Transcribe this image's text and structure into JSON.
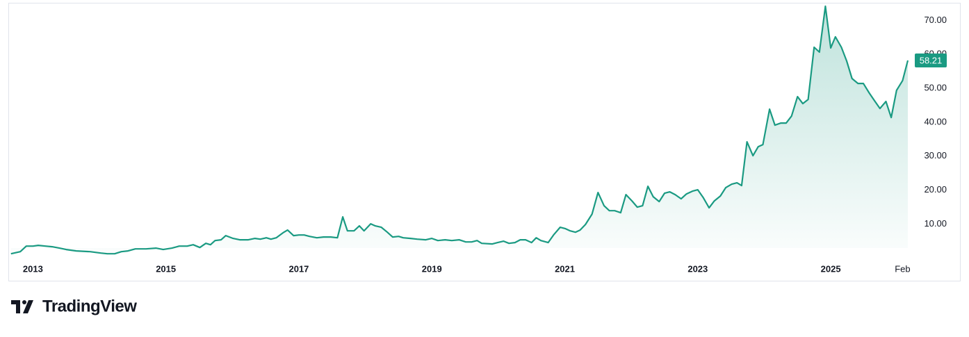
{
  "chart_data": {
    "type": "area",
    "series": [
      {
        "color": "#1a9a82",
        "x": [
          2012.67,
          2012.81,
          2012.9,
          2013.0,
          2013.08,
          2013.19,
          2013.29,
          2013.4,
          2013.5,
          2013.65,
          2013.86,
          2014.02,
          2014.12,
          2014.23,
          2014.33,
          2014.43,
          2014.54,
          2014.7,
          2014.85,
          2014.96,
          2015.09,
          2015.2,
          2015.32,
          2015.41,
          2015.51,
          2015.6,
          2015.67,
          2015.74,
          2015.83,
          2015.9,
          2016.01,
          2016.11,
          2016.24,
          2016.34,
          2016.42,
          2016.51,
          2016.58,
          2016.66,
          2016.76,
          2016.83,
          2016.92,
          2017.0,
          2017.08,
          2017.16,
          2017.27,
          2017.37,
          2017.48,
          2017.58,
          2017.66,
          2017.73,
          2017.83,
          2017.91,
          2017.98,
          2018.08,
          2018.15,
          2018.24,
          2018.33,
          2018.41,
          2018.5,
          2018.57,
          2018.68,
          2018.78,
          2018.91,
          2019.0,
          2019.09,
          2019.2,
          2019.3,
          2019.41,
          2019.51,
          2019.6,
          2019.68,
          2019.75,
          2019.91,
          2019.99,
          2020.08,
          2020.16,
          2020.25,
          2020.33,
          2020.41,
          2020.5,
          2020.57,
          2020.64,
          2020.75,
          2020.83,
          2020.93,
          2021.01,
          2021.08,
          2021.16,
          2021.23,
          2021.31,
          2021.41,
          2021.5,
          2021.59,
          2021.67,
          2021.75,
          2021.84,
          2021.92,
          2022.01,
          2022.09,
          2022.17,
          2022.25,
          2022.33,
          2022.42,
          2022.5,
          2022.58,
          2022.66,
          2022.75,
          2022.83,
          2022.92,
          2023.0,
          2023.08,
          2023.17,
          2023.25,
          2023.34,
          2023.42,
          2023.51,
          2023.59,
          2023.66,
          2023.74,
          2023.83,
          2023.91,
          2023.98,
          2024.08,
          2024.16,
          2024.25,
          2024.33,
          2024.41,
          2024.5,
          2024.58,
          2024.66,
          2024.75,
          2024.83,
          2024.92,
          2025.0,
          2025.07,
          2025.16,
          2025.24,
          2025.32,
          2025.41,
          2025.49,
          2025.58,
          2025.66,
          2025.74,
          2025.83,
          2025.91,
          2025.99,
          2026.08,
          2026.16
        ],
        "values": [
          1.23,
          1.84,
          3.48,
          3.48,
          3.69,
          3.48,
          3.28,
          2.87,
          2.46,
          2.05,
          1.84,
          1.43,
          1.23,
          1.23,
          1.84,
          2.05,
          2.66,
          2.66,
          2.87,
          2.46,
          2.87,
          3.48,
          3.48,
          3.89,
          3.07,
          4.3,
          3.89,
          5.12,
          5.33,
          6.56,
          5.74,
          5.33,
          5.33,
          5.74,
          5.53,
          5.94,
          5.53,
          5.94,
          7.38,
          8.2,
          6.56,
          6.76,
          6.76,
          6.35,
          5.94,
          6.15,
          6.15,
          5.94,
          12.09,
          7.99,
          7.99,
          9.43,
          7.99,
          10.04,
          9.43,
          9.02,
          7.58,
          6.15,
          6.35,
          5.94,
          5.74,
          5.53,
          5.33,
          5.74,
          5.12,
          5.33,
          5.12,
          5.33,
          4.71,
          4.71,
          5.12,
          4.3,
          4.1,
          4.51,
          4.92,
          4.3,
          4.51,
          5.33,
          5.33,
          4.51,
          5.94,
          5.12,
          4.51,
          6.76,
          9.02,
          8.61,
          7.99,
          7.58,
          8.2,
          9.84,
          12.91,
          19.26,
          15.37,
          13.93,
          13.93,
          13.32,
          18.65,
          16.8,
          14.96,
          15.37,
          21.11,
          18.03,
          16.6,
          19.06,
          19.47,
          18.65,
          17.42,
          18.85,
          19.67,
          20.08,
          17.83,
          14.75,
          16.8,
          18.24,
          20.7,
          21.72,
          22.13,
          21.31,
          34.22,
          30.12,
          32.79,
          33.4,
          43.85,
          39.14,
          39.75,
          39.75,
          41.8,
          47.54,
          45.49,
          46.72,
          62.09,
          60.66,
          74.18,
          61.89,
          65.16,
          62.09,
          57.99,
          52.87,
          51.43,
          51.43,
          48.57,
          46.31,
          44.06,
          46.11,
          41.39,
          49.39,
          52.25,
          58.21
        ]
      }
    ],
    "xlim": [
      2012.63,
      2026.17
    ],
    "xticks": [
      {
        "value": 2013,
        "label": "2013"
      },
      {
        "value": 2015,
        "label": "2015"
      },
      {
        "value": 2017,
        "label": "2017"
      },
      {
        "value": 2019,
        "label": "2019"
      },
      {
        "value": 2021,
        "label": "2021"
      },
      {
        "value": 2023,
        "label": "2023"
      },
      {
        "value": 2025,
        "label": "2025"
      },
      {
        "value": 2026.08,
        "label": "Feb"
      }
    ],
    "ylim": [
      2.9,
      75
    ],
    "yticks": [
      {
        "value": 10,
        "label": "10.00"
      },
      {
        "value": 20,
        "label": "20.00"
      },
      {
        "value": 30,
        "label": "30.00"
      },
      {
        "value": 40,
        "label": "40.00"
      },
      {
        "value": 50,
        "label": "50.00"
      },
      {
        "value": 60,
        "label": "60.00"
      },
      {
        "value": 70,
        "label": "70.00"
      }
    ],
    "grid": false
  },
  "branding": "TradingView"
}
